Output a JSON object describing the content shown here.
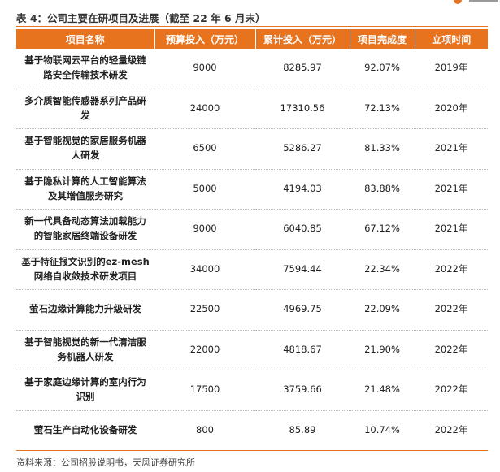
{
  "header": {
    "title": "表 4：公司主要在研项目及进展（截至 22 年 6 月末）"
  },
  "table": {
    "columns": [
      "项目名称",
      "预算投入（万元）",
      "累计投入（万元）",
      "项目完成度",
      "立项时间"
    ],
    "rows": [
      [
        "基于物联网云平台的轻量级链路安全传输技术研发",
        "9000",
        "8285.97",
        "92.07%",
        "2019年"
      ],
      [
        "多介质智能传感器系列产品研发",
        "24000",
        "17310.56",
        "72.13%",
        "2020年"
      ],
      [
        "基于智能视觉的家居服务机器人研发",
        "6500",
        "5286.27",
        "81.33%",
        "2021年"
      ],
      [
        "基于隐私计算的人工智能算法及其增值服务研究",
        "5000",
        "4194.03",
        "83.88%",
        "2021年"
      ],
      [
        "新一代具备动态算法加载能力的智能家居终端设备研发",
        "9000",
        "6040.85",
        "67.12%",
        "2021年"
      ],
      [
        "基于特征报文识别的ez-mesh网络自收敛技术研发项目",
        "34000",
        "7594.44",
        "22.34%",
        "2022年"
      ],
      [
        "萤石边缘计算能力升级研发",
        "22500",
        "4969.75",
        "22.09%",
        "2022年"
      ],
      [
        "基于智能视觉的新一代清洁服务机器人研发",
        "22000",
        "4818.67",
        "21.90%",
        "2022年"
      ],
      [
        "基于家庭边缘计算的室内行为识别",
        "17500",
        "3759.66",
        "21.48%",
        "2022年"
      ],
      [
        "萤石生产自动化设备研发",
        "800",
        "85.89",
        "10.74%",
        "2022年"
      ]
    ]
  },
  "footer": {
    "source": "资料来源：公司招股说明书，天风证券研究所"
  }
}
